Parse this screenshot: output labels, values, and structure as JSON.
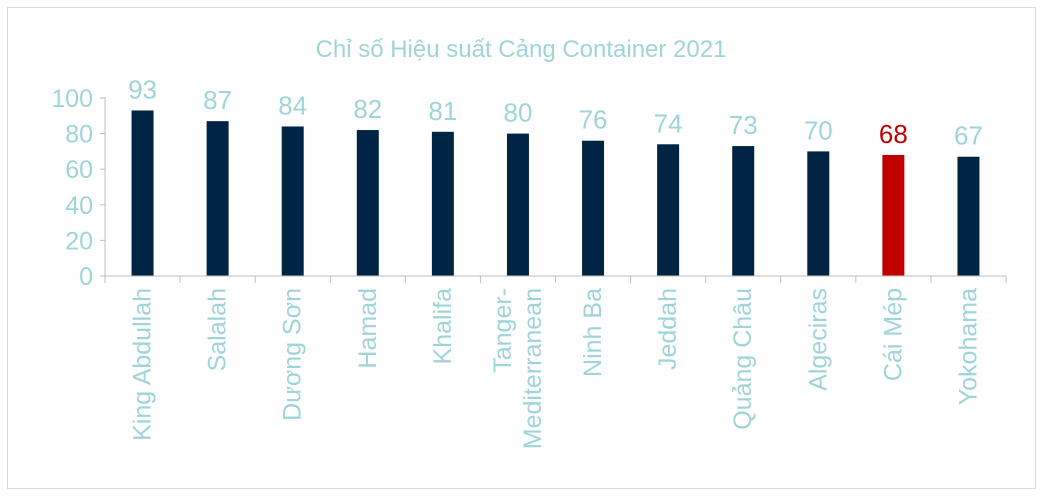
{
  "chart_data": {
    "type": "bar",
    "title": "Chỉ số Hiệu suất Cảng Container 2021",
    "xlabel": "",
    "ylabel": "",
    "ylim": [
      0,
      100
    ],
    "yticks": [
      0,
      20,
      40,
      60,
      80,
      100
    ],
    "grid": false,
    "legend": "none",
    "categories": [
      [
        "King Abdullah"
      ],
      [
        "Salalah"
      ],
      [
        "Dương Sơn"
      ],
      [
        "Hamad"
      ],
      [
        "Khalifa"
      ],
      [
        "Tanger-",
        "Mediterranean"
      ],
      [
        "Ninh Ba"
      ],
      [
        "Jeddah"
      ],
      [
        "Quảng Châu"
      ],
      [
        "Algeciras"
      ],
      [
        "Cái Mép"
      ],
      [
        "Yokohama"
      ]
    ],
    "values": [
      93,
      87,
      84,
      82,
      81,
      80,
      76,
      74,
      73,
      70,
      68,
      67
    ],
    "highlight_index": 10,
    "colors": {
      "bar": "#002544",
      "highlight": "#c00000",
      "text": "#9fd4d8",
      "highlight_text": "#c00000",
      "axis": "#bfbfbf",
      "border": "#d9d9d9"
    }
  }
}
